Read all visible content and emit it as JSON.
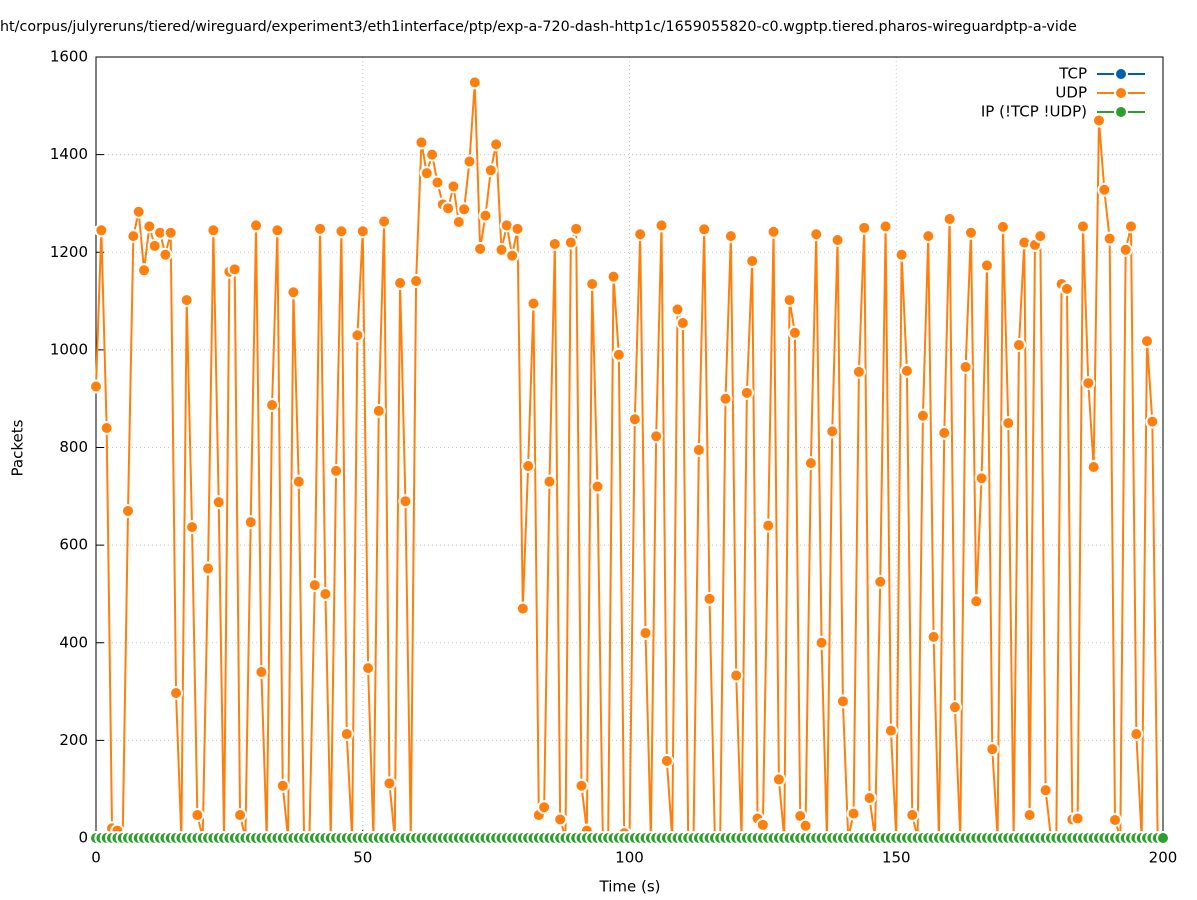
{
  "chart_data": {
    "type": "line",
    "title": "ht/corpus/julyreruns/tiered/wireguard/experiment3/eth1interface/ptp/exp-a-720-dash-http1c/1659055820-c0.wgptp.tiered.pharos-wireguardptp-a-vide",
    "x_label": "Time (s)",
    "y_label": "Packets",
    "x": [
      0,
      1,
      2,
      3,
      4,
      5,
      6,
      7,
      8,
      9,
      10,
      11,
      12,
      13,
      14,
      15,
      16,
      17,
      18,
      19,
      20,
      21,
      22,
      23,
      24,
      25,
      26,
      27,
      28,
      29,
      30,
      31,
      32,
      33,
      34,
      35,
      36,
      37,
      38,
      39,
      40,
      41,
      42,
      43,
      44,
      45,
      46,
      47,
      48,
      49,
      50,
      51,
      52,
      53,
      54,
      55,
      56,
      57,
      58,
      59,
      60,
      61,
      62,
      63,
      64,
      65,
      66,
      67,
      68,
      69,
      70,
      71,
      72,
      73,
      74,
      75,
      76,
      77,
      78,
      79,
      80,
      81,
      82,
      83,
      84,
      85,
      86,
      87,
      88,
      89,
      90,
      91,
      92,
      93,
      94,
      95,
      96,
      97,
      98,
      99,
      100,
      101,
      102,
      103,
      104,
      105,
      106,
      107,
      108,
      109,
      110,
      111,
      112,
      113,
      114,
      115,
      116,
      117,
      118,
      119,
      120,
      121,
      122,
      123,
      124,
      125,
      126,
      127,
      128,
      129,
      130,
      131,
      132,
      133,
      134,
      135,
      136,
      137,
      138,
      139,
      140,
      141,
      142,
      143,
      144,
      145,
      146,
      147,
      148,
      149,
      150,
      151,
      152,
      153,
      154,
      155,
      156,
      157,
      158,
      159,
      160,
      161,
      162,
      163,
      164,
      165,
      166,
      167,
      168,
      169,
      170,
      171,
      172,
      173,
      174,
      175,
      176,
      177,
      178,
      179,
      180,
      181,
      182,
      183,
      184,
      185,
      186,
      187,
      188,
      189,
      190,
      191,
      192,
      193,
      194,
      195,
      196,
      197,
      198,
      199,
      200
    ],
    "series": [
      {
        "name": "TCP",
        "color": "#0060ad",
        "values": [
          0,
          0,
          0,
          0,
          0,
          0,
          0,
          0,
          0,
          0,
          0,
          0,
          0,
          0,
          0,
          0,
          0,
          0,
          0,
          0,
          0,
          0,
          0,
          0,
          0,
          0,
          0,
          0,
          0,
          0,
          0,
          0,
          0,
          0,
          0,
          0,
          0,
          0,
          0,
          0,
          0,
          0,
          0,
          0,
          0,
          0,
          0,
          0,
          0,
          0,
          0,
          0,
          0,
          0,
          0,
          0,
          0,
          0,
          0,
          0,
          0,
          0,
          0,
          0,
          0,
          0,
          0,
          0,
          0,
          0,
          0,
          0,
          0,
          0,
          0,
          0,
          0,
          0,
          0,
          0,
          0,
          0,
          0,
          0,
          0,
          0,
          0,
          0,
          0,
          0,
          0,
          0,
          0,
          0,
          0,
          0,
          0,
          0,
          0,
          0,
          0,
          0,
          0,
          0,
          0,
          0,
          0,
          0,
          0,
          0,
          0,
          0,
          0,
          0,
          0,
          0,
          0,
          0,
          0,
          0,
          0,
          0,
          0,
          0,
          0,
          0,
          0,
          0,
          0,
          0,
          0,
          0,
          0,
          0,
          0,
          0,
          0,
          0,
          0,
          0,
          0,
          0,
          0,
          0,
          0,
          0,
          0,
          0,
          0,
          0,
          0,
          0,
          0,
          0,
          0,
          0,
          0,
          0,
          0,
          0,
          0,
          0,
          0,
          0,
          0,
          0,
          0,
          0,
          0,
          0,
          0,
          0,
          0,
          0,
          0,
          0,
          0,
          0,
          0,
          0,
          0,
          0,
          0,
          0,
          0,
          0,
          0,
          0,
          0,
          0,
          0,
          0,
          0,
          0,
          0,
          0,
          0,
          0,
          0,
          0,
          0
        ]
      },
      {
        "name": "UDP",
        "color": "#ff7f0e",
        "values": [
          925,
          1245,
          840,
          20,
          15,
          0,
          670,
          1233,
          1283,
          1163,
          1253,
          1213,
          1240,
          1195,
          1240,
          297,
          0,
          1102,
          637,
          47,
          0,
          552,
          1245,
          688,
          0,
          1160,
          1165,
          47,
          0,
          647,
          1255,
          340,
          0,
          887,
          1245,
          107,
          0,
          1118,
          730,
          0,
          0,
          518,
          1248,
          500,
          0,
          752,
          1243,
          213,
          0,
          1030,
          1243,
          348,
          0,
          875,
          1263,
          112,
          0,
          1137,
          690,
          0,
          1141,
          1425,
          1362,
          1400,
          1343,
          1298,
          1290,
          1335,
          1262,
          1288,
          1386,
          1548,
          1207,
          1275,
          1368,
          1421,
          1205,
          1255,
          1193,
          1248,
          470,
          762,
          1095,
          47,
          63,
          730,
          1217,
          38,
          0,
          1220,
          1248,
          107,
          15,
          1135,
          720,
          0,
          0,
          1150,
          990,
          10,
          0,
          858,
          1237,
          420,
          0,
          823,
          1255,
          158,
          0,
          1083,
          1055,
          0,
          0,
          795,
          1247,
          490,
          0,
          0,
          900,
          1233,
          333,
          0,
          912,
          1182,
          40,
          27,
          640,
          1242,
          120,
          0,
          1102,
          1035,
          45,
          25,
          768,
          1237,
          400,
          0,
          833,
          1225,
          280,
          0,
          50,
          955,
          1250,
          82,
          0,
          525,
          1253,
          220,
          0,
          1195,
          957,
          47,
          0,
          865,
          1233,
          412,
          0,
          830,
          1268,
          268,
          0,
          965,
          1240,
          485,
          737,
          1173,
          182,
          0,
          1252,
          850,
          0,
          1010,
          1220,
          47,
          1215,
          1233,
          98,
          0,
          0,
          1135,
          1125,
          38,
          40,
          1253,
          932,
          760,
          1470,
          1328,
          1228,
          37,
          0,
          1205,
          1253,
          213,
          0,
          1018,
          853,
          0,
          0
        ]
      },
      {
        "name": "IP (!TCP  !UDP)",
        "color": "#2ca02c",
        "values": [
          0,
          0,
          0,
          0,
          0,
          0,
          0,
          0,
          0,
          0,
          0,
          0,
          0,
          0,
          0,
          0,
          0,
          0,
          0,
          0,
          0,
          0,
          0,
          0,
          0,
          0,
          0,
          0,
          0,
          0,
          0,
          0,
          0,
          0,
          0,
          0,
          0,
          0,
          0,
          0,
          0,
          0,
          0,
          0,
          0,
          0,
          0,
          0,
          0,
          0,
          0,
          0,
          0,
          0,
          0,
          0,
          0,
          0,
          0,
          0,
          0,
          0,
          0,
          0,
          0,
          0,
          0,
          0,
          0,
          0,
          0,
          0,
          0,
          0,
          0,
          0,
          0,
          0,
          0,
          0,
          0,
          0,
          0,
          0,
          0,
          0,
          0,
          0,
          0,
          0,
          0,
          0,
          0,
          0,
          0,
          0,
          0,
          0,
          0,
          0,
          0,
          0,
          0,
          0,
          0,
          0,
          0,
          0,
          0,
          0,
          0,
          0,
          0,
          0,
          0,
          0,
          0,
          0,
          0,
          0,
          0,
          0,
          0,
          0,
          0,
          0,
          0,
          0,
          0,
          0,
          0,
          0,
          0,
          0,
          0,
          0,
          0,
          0,
          0,
          0,
          0,
          0,
          0,
          0,
          0,
          0,
          0,
          0,
          0,
          0,
          0,
          0,
          0,
          0,
          0,
          0,
          0,
          0,
          0,
          0,
          0,
          0,
          0,
          0,
          0,
          0,
          0,
          0,
          0,
          0,
          0,
          0,
          0,
          0,
          0,
          0,
          0,
          0,
          0,
          0,
          0,
          0,
          0,
          0,
          0,
          0,
          0,
          0,
          0,
          0,
          0,
          0,
          0,
          0,
          0,
          0,
          0,
          0,
          0,
          0,
          0
        ]
      }
    ],
    "xlim": [
      0,
      200
    ],
    "xticks": [
      0,
      50,
      100,
      150,
      200
    ],
    "ylim": [
      0,
      1600
    ],
    "yticks": [
      0,
      200,
      400,
      600,
      800,
      1000,
      1200,
      1400,
      1600
    ],
    "grid": true,
    "legend": "top-right"
  }
}
